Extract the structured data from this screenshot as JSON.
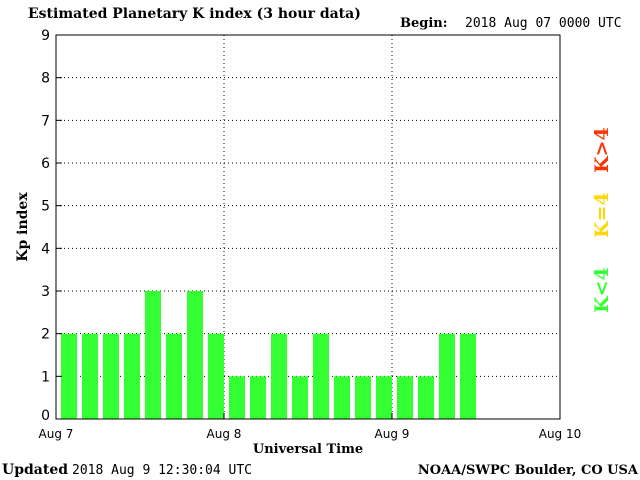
{
  "header": {
    "title": "Estimated Planetary K index (3 hour data)",
    "begin_label": "Begin:",
    "begin_value": "2018 Aug 07 0000 UTC"
  },
  "footer": {
    "updated_label": "Updated",
    "updated_value": "2018 Aug  9 12:30:04 UTC",
    "credit": "NOAA/SWPC Boulder, CO USA"
  },
  "legend": {
    "items": [
      {
        "label": "K<4",
        "color": "#33ff33"
      },
      {
        "label": "K=4",
        "color": "#ffd700"
      },
      {
        "label": "K>4",
        "color": "#ff3300"
      }
    ]
  },
  "chart_data": {
    "type": "bar",
    "ylabel": "Kp index",
    "xlabel": "Universal Time",
    "ylim": [
      0,
      9
    ],
    "yticks": [
      0,
      1,
      2,
      3,
      4,
      5,
      6,
      7,
      8,
      9
    ],
    "x_tick_labels": [
      "Aug 7",
      "Aug 8",
      "Aug 9",
      "Aug 10"
    ],
    "slots_total": 24,
    "values": [
      2,
      2,
      2,
      2,
      3,
      2,
      3,
      2,
      1,
      1,
      2,
      1,
      2,
      1,
      1,
      1,
      1,
      1,
      2,
      2
    ],
    "bar_color": "#33ff33",
    "grid": "dotted"
  }
}
